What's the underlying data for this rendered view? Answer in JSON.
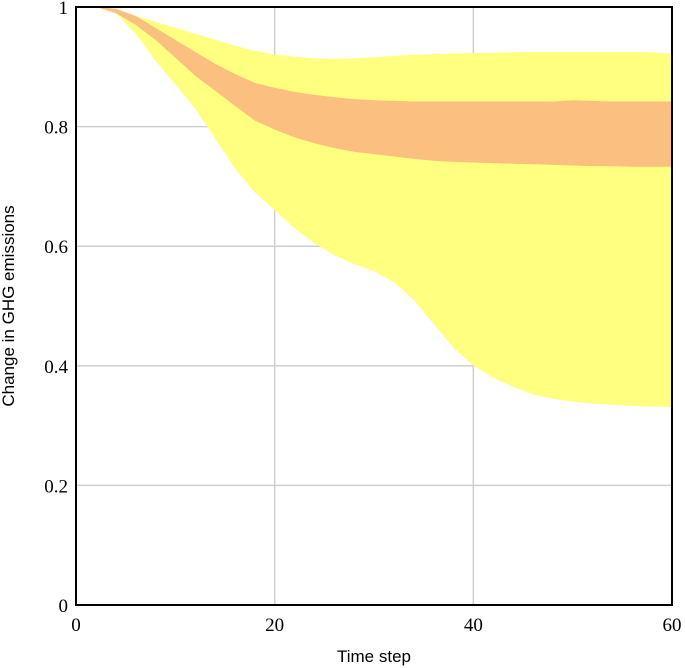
{
  "chart_data": {
    "type": "area",
    "title": "",
    "xlabel": "Time step",
    "ylabel": "Change in GHG emissions",
    "xlim": [
      0,
      60
    ],
    "ylim": [
      0,
      1
    ],
    "xticks": [
      0,
      20,
      40,
      60
    ],
    "yticks": [
      0,
      0.2,
      0.4,
      0.6,
      0.8,
      1
    ],
    "xtick_labels": [
      "0",
      "20",
      "40",
      "60"
    ],
    "ytick_labels": [
      "0",
      "0.2",
      "0.4",
      "0.6",
      "0.8",
      "1"
    ],
    "grid": true,
    "legend": "none",
    "series": [
      {
        "color": "#ffff80",
        "x": [
          0,
          2,
          4,
          6,
          8,
          10,
          12,
          14,
          16,
          18,
          20,
          22,
          24,
          26,
          28,
          30,
          32,
          34,
          36,
          38,
          40,
          42,
          44,
          46,
          48,
          50,
          52,
          54,
          56,
          58,
          60
        ],
        "upper": [
          1,
          1,
          0.995,
          0.985,
          0.975,
          0.965,
          0.955,
          0.945,
          0.935,
          0.927,
          0.92,
          0.917,
          0.914,
          0.913,
          0.914,
          0.916,
          0.918,
          0.92,
          0.921,
          0.922,
          0.923,
          0.923,
          0.924,
          0.925,
          0.925,
          0.925,
          0.925,
          0.925,
          0.925,
          0.924,
          0.922
        ],
        "lower": [
          1,
          1,
          0.99,
          0.955,
          0.91,
          0.87,
          0.83,
          0.78,
          0.73,
          0.69,
          0.66,
          0.63,
          0.605,
          0.585,
          0.57,
          0.558,
          0.54,
          0.51,
          0.47,
          0.43,
          0.4,
          0.38,
          0.365,
          0.352,
          0.345,
          0.34,
          0.337,
          0.335,
          0.333,
          0.332,
          0.331
        ]
      },
      {
        "color": "#fbbf80",
        "x": [
          0,
          2,
          4,
          6,
          8,
          10,
          12,
          14,
          16,
          18,
          20,
          22,
          24,
          26,
          28,
          30,
          32,
          34,
          36,
          38,
          40,
          42,
          44,
          46,
          48,
          50,
          52,
          54,
          56,
          58,
          60
        ],
        "upper": [
          1,
          1,
          0.997,
          0.985,
          0.965,
          0.945,
          0.925,
          0.905,
          0.888,
          0.873,
          0.865,
          0.858,
          0.853,
          0.849,
          0.846,
          0.844,
          0.843,
          0.842,
          0.842,
          0.842,
          0.842,
          0.842,
          0.842,
          0.842,
          0.842,
          0.844,
          0.843,
          0.842,
          0.842,
          0.842,
          0.842
        ],
        "lower": [
          1,
          1,
          0.99,
          0.97,
          0.945,
          0.915,
          0.885,
          0.86,
          0.835,
          0.81,
          0.795,
          0.782,
          0.772,
          0.764,
          0.758,
          0.754,
          0.75,
          0.746,
          0.743,
          0.741,
          0.74,
          0.739,
          0.738,
          0.737,
          0.736,
          0.735,
          0.734,
          0.734,
          0.733,
          0.733,
          0.733
        ]
      }
    ]
  }
}
